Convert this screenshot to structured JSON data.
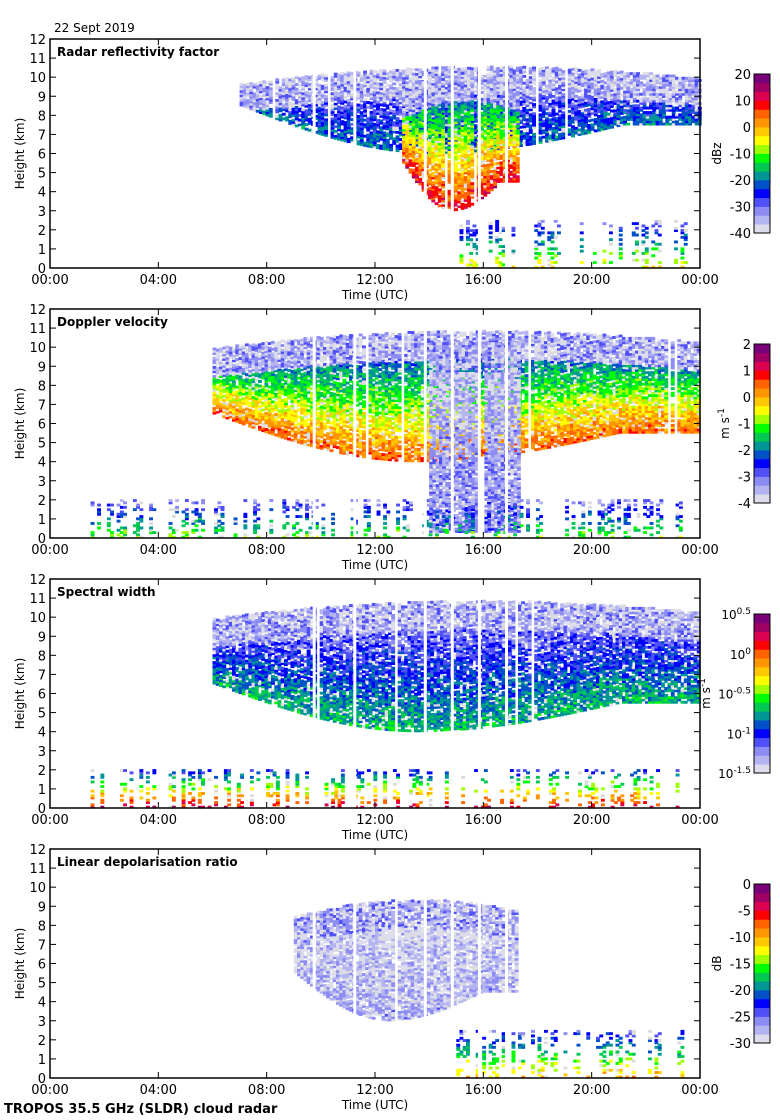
{
  "header": {
    "date": "22 Sept 2019"
  },
  "footer": {
    "instrument": "TROPOS 35.5 GHz (SLDR) cloud radar"
  },
  "colors": {
    "frame": "#000000",
    "missing": "#dcdcdc",
    "colormap": [
      "#dcdcec",
      "#b4b4f0",
      "#8c8cf4",
      "#5050f8",
      "#0000ff",
      "#0050c8",
      "#009696",
      "#00c850",
      "#00ff00",
      "#a0ff00",
      "#ffff00",
      "#ffc800",
      "#ff9600",
      "#ff6400",
      "#ff0000",
      "#dc0050",
      "#a00064",
      "#780078"
    ]
  },
  "chart_data": [
    {
      "type": "heatmap",
      "title": "Radar reflectivity factor",
      "xlabel": "Time (UTC)",
      "ylabel": "Height (km)",
      "x_ticks": [
        "00:00",
        "04:00",
        "08:00",
        "12:00",
        "16:00",
        "20:00",
        "00:00"
      ],
      "x_range_hours": [
        0,
        24
      ],
      "y_ticks": [
        "0",
        "1",
        "2",
        "3",
        "4",
        "5",
        "6",
        "7",
        "8",
        "9",
        "10",
        "11",
        "12"
      ],
      "ylim": [
        0,
        12
      ],
      "colorbar": {
        "label": "dBz",
        "range": [
          -40,
          20
        ],
        "ticks": [
          "20",
          "10",
          "0",
          "-10",
          "-20",
          "-30",
          "-40"
        ]
      },
      "features": [
        {
          "name": "upper cirrus deck",
          "t_start_h": 7.0,
          "t_end_h": 24.0,
          "base_km": 6.0,
          "top_km": 10.5,
          "peak_value": -20
        },
        {
          "name": "precipitating core",
          "t_start_h": 13.0,
          "t_end_h": 17.3,
          "base_km": 3.0,
          "top_km": 10.2,
          "peak_value": 10
        },
        {
          "name": "low-level echoes",
          "t_start_h": 15.0,
          "t_end_h": 23.5,
          "base_km": 0.0,
          "top_km": 2.5,
          "peak_value": -5
        }
      ]
    },
    {
      "type": "heatmap",
      "title": "Doppler velocity",
      "xlabel": "Time (UTC)",
      "ylabel": "Height (km)",
      "x_ticks": [
        "00:00",
        "04:00",
        "08:00",
        "12:00",
        "16:00",
        "20:00",
        "00:00"
      ],
      "x_range_hours": [
        0,
        24
      ],
      "y_ticks": [
        "0",
        "1",
        "2",
        "3",
        "4",
        "5",
        "6",
        "7",
        "8",
        "9",
        "10",
        "11",
        "12"
      ],
      "ylim": [
        0,
        12
      ],
      "colorbar": {
        "label": "m s-1",
        "label_main": "m s",
        "label_sup": "-1",
        "range": [
          -4,
          2
        ],
        "ticks": [
          "2",
          "1",
          "0",
          "-1",
          "-2",
          "-3",
          "-4"
        ]
      },
      "features": [
        {
          "name": "upper cloud",
          "t_start_h": 6.0,
          "t_end_h": 24.0,
          "base_km": 4.0,
          "top_km": 10.8,
          "peak_value": 0.5
        },
        {
          "name": "fall streaks",
          "t_start_h": 14.0,
          "t_end_h": 17.3,
          "base_km": 0.3,
          "top_km": 10.2,
          "peak_value": -3
        },
        {
          "name": "boundary layer",
          "t_start_h": 1.5,
          "t_end_h": 23.5,
          "base_km": 0.0,
          "top_km": 2.0,
          "peak_value": -1
        }
      ]
    },
    {
      "type": "heatmap",
      "title": "Spectral width",
      "xlabel": "Time (UTC)",
      "ylabel": "Height (km)",
      "x_ticks": [
        "00:00",
        "04:00",
        "08:00",
        "12:00",
        "16:00",
        "20:00",
        "00:00"
      ],
      "x_range_hours": [
        0,
        24
      ],
      "y_ticks": [
        "0",
        "1",
        "2",
        "3",
        "4",
        "5",
        "6",
        "7",
        "8",
        "9",
        "10",
        "11",
        "12"
      ],
      "ylim": [
        0,
        12
      ],
      "colorbar": {
        "label": "m s-1",
        "label_main": "m s",
        "label_sup": "-1",
        "scale": "log10",
        "range": [
          -1.5,
          0.5
        ],
        "ticks": [
          {
            "base": "10",
            "exp": "0.5"
          },
          {
            "base": "10",
            "exp": "0"
          },
          {
            "base": "10",
            "exp": "-0.5"
          },
          {
            "base": "10",
            "exp": "-1"
          },
          {
            "base": "10",
            "exp": "-1.5"
          }
        ]
      },
      "features": [
        {
          "name": "upper cloud",
          "t_start_h": 6.0,
          "t_end_h": 24.0,
          "base_km": 4.0,
          "top_km": 10.8,
          "peak_value": -0.7
        },
        {
          "name": "boundary layer turbulence",
          "t_start_h": 1.5,
          "t_end_h": 23.5,
          "base_km": 0.0,
          "top_km": 2.0,
          "peak_value": 0.2
        }
      ]
    },
    {
      "type": "heatmap",
      "title": "Linear depolarisation ratio",
      "xlabel": "Time (UTC)",
      "ylabel": "Height (km)",
      "x_ticks": [
        "00:00",
        "04:00",
        "08:00",
        "12:00",
        "16:00",
        "20:00",
        "00:00"
      ],
      "x_range_hours": [
        0,
        24
      ],
      "y_ticks": [
        "0",
        "1",
        "2",
        "3",
        "4",
        "5",
        "6",
        "7",
        "8",
        "9",
        "10",
        "11",
        "12"
      ],
      "ylim": [
        0,
        12
      ],
      "colorbar": {
        "label": "dB",
        "range": [
          -30,
          0
        ],
        "ticks": [
          "0",
          "-5",
          "-10",
          "-15",
          "-20",
          "-25",
          "-30"
        ]
      },
      "features": [
        {
          "name": "ice cloud",
          "t_start_h": 9.0,
          "t_end_h": 17.3,
          "base_km": 3.0,
          "top_km": 9.3,
          "peak_value": -27
        },
        {
          "name": "melting layer / low echoes",
          "t_start_h": 15.0,
          "t_end_h": 23.5,
          "base_km": 0.0,
          "top_km": 2.5,
          "peak_value": -10
        }
      ]
    }
  ]
}
